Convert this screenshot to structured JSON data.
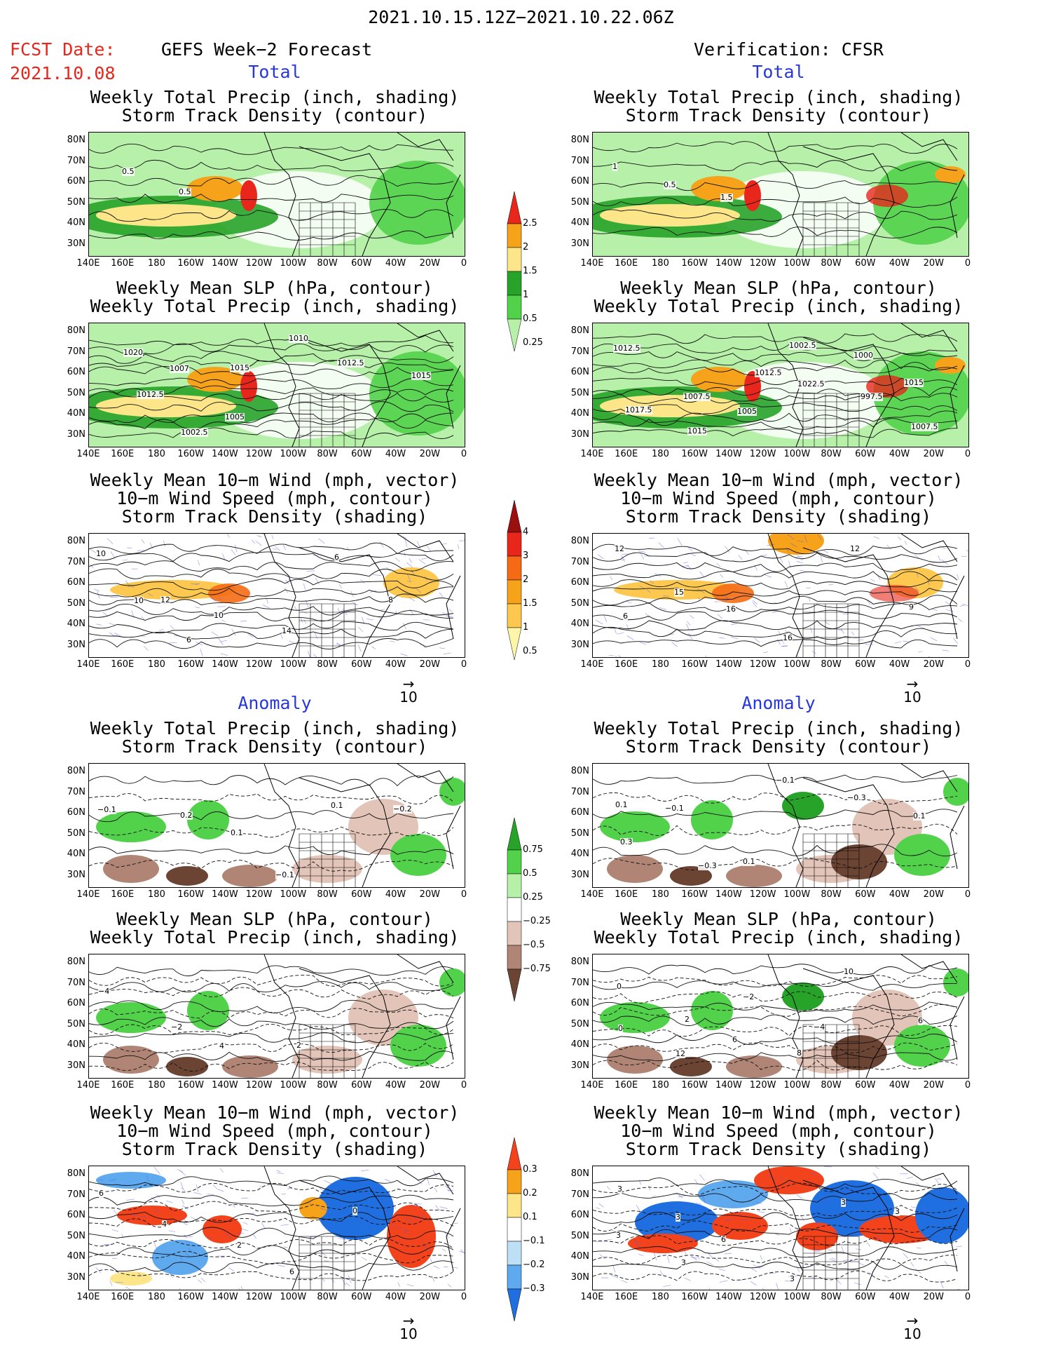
{
  "header": {
    "date_range": "2021.10.15.12Z−2021.10.22.06Z",
    "fcst_label": "FCST Date:",
    "fcst_date": "2021.10.08",
    "left_title": "GEFS Week−2 Forecast",
    "right_title": "Verification: CFSR"
  },
  "sections": {
    "total": "Total",
    "anomaly": "Anomaly"
  },
  "panel_titles": {
    "precip_storm": [
      "Weekly Total Precip (inch, shading)",
      "Storm Track Density (contour)"
    ],
    "slp_precip": [
      "Weekly Mean SLP (hPa, contour)",
      "Weekly Total Precip (inch, shading)"
    ],
    "wind_storm": [
      "Weekly Mean 10−m Wind (mph, vector)",
      "10−m Wind Speed (mph, contour)",
      "Storm Track Density (shading)"
    ]
  },
  "axes": {
    "lat": [
      "80N",
      "70N",
      "60N",
      "50N",
      "40N",
      "30N"
    ],
    "lon": [
      "140E",
      "160E",
      "180",
      "160W",
      "140W",
      "120W",
      "100W",
      "80W",
      "60W",
      "40W",
      "20W",
      "0"
    ]
  },
  "vector_ref": "10",
  "colorbars": {
    "total_precip": {
      "labels": [
        "2.5",
        "2",
        "1.5",
        "1",
        "0.5",
        "0.25"
      ],
      "colors": [
        "#e8261c",
        "#f7a21b",
        "#fde68a",
        "#27a329",
        "#52d24a",
        "#b6f0a9"
      ]
    },
    "total_storm": {
      "labels": [
        "4",
        "3",
        "2",
        "1.5",
        "1",
        "0.5"
      ],
      "colors": [
        "#9a1010",
        "#e8261c",
        "#f56b15",
        "#f7a21b",
        "#fcc84f",
        "#fdf6a8"
      ]
    },
    "anom_precip": {
      "labels": [
        "0.75",
        "0.5",
        "0.25",
        "−0.25",
        "−0.5",
        "−0.75"
      ],
      "colors": [
        "#27a329",
        "#52d24a",
        "#b6f0a9",
        "#ffffff",
        "#e3c4b8",
        "#b08576",
        "#6b4434"
      ]
    },
    "anom_storm": {
      "labels": [
        "0.3",
        "0.2",
        "0.1",
        "−0.1",
        "−0.2",
        "−0.3"
      ],
      "colors": [
        "#f2431c",
        "#f7a21b",
        "#fde68a",
        "#ffffff",
        "#bde0f7",
        "#5fa9ee",
        "#1f6fe0"
      ]
    }
  },
  "contour_labels": {
    "t_fc_precip": [
      "0.5",
      "0.5"
    ],
    "t_vf_precip": [
      "1",
      "0.5",
      "1.5"
    ],
    "t_fc_slp": [
      "1020",
      "1007",
      "1005",
      "1010",
      "1012.5",
      "1015",
      "1012.5",
      "1002.5",
      "1015"
    ],
    "t_vf_slp": [
      "1012.5",
      "1007.5",
      "1005",
      "1002.5",
      "1000",
      "1015",
      "1017.5",
      "1015",
      "1012.5",
      "1022.5",
      "997.5",
      "1007.5"
    ],
    "t_fc_wind": [
      "10",
      "12",
      "10",
      "14",
      "6",
      "8",
      "10",
      "6"
    ],
    "t_vf_wind": [
      "12",
      "15",
      "16",
      "16",
      "12",
      "9",
      "6"
    ],
    "a_fc_precip": [
      "−0.1",
      "0.2",
      "0.1",
      "−0.1",
      "0.1",
      "−0.2"
    ],
    "a_vf_precip": [
      "0.1",
      "−0.1",
      "0.1",
      "−0.1",
      "−0.3",
      "0.1",
      "0.3",
      "−0.3"
    ],
    "a_fc_slp": [
      "−4",
      "−2",
      "4",
      "2"
    ],
    "a_vf_slp": [
      "0",
      "2",
      "6",
      "8",
      "10",
      "6",
      "0",
      "12",
      "−2",
      "−4"
    ],
    "a_fc_wind": [
      "6",
      "4",
      "2",
      "6",
      "0"
    ],
    "a_vf_wind": [
      "3",
      "3",
      "6",
      "3",
      "3",
      "3",
      "3",
      "3"
    ]
  }
}
